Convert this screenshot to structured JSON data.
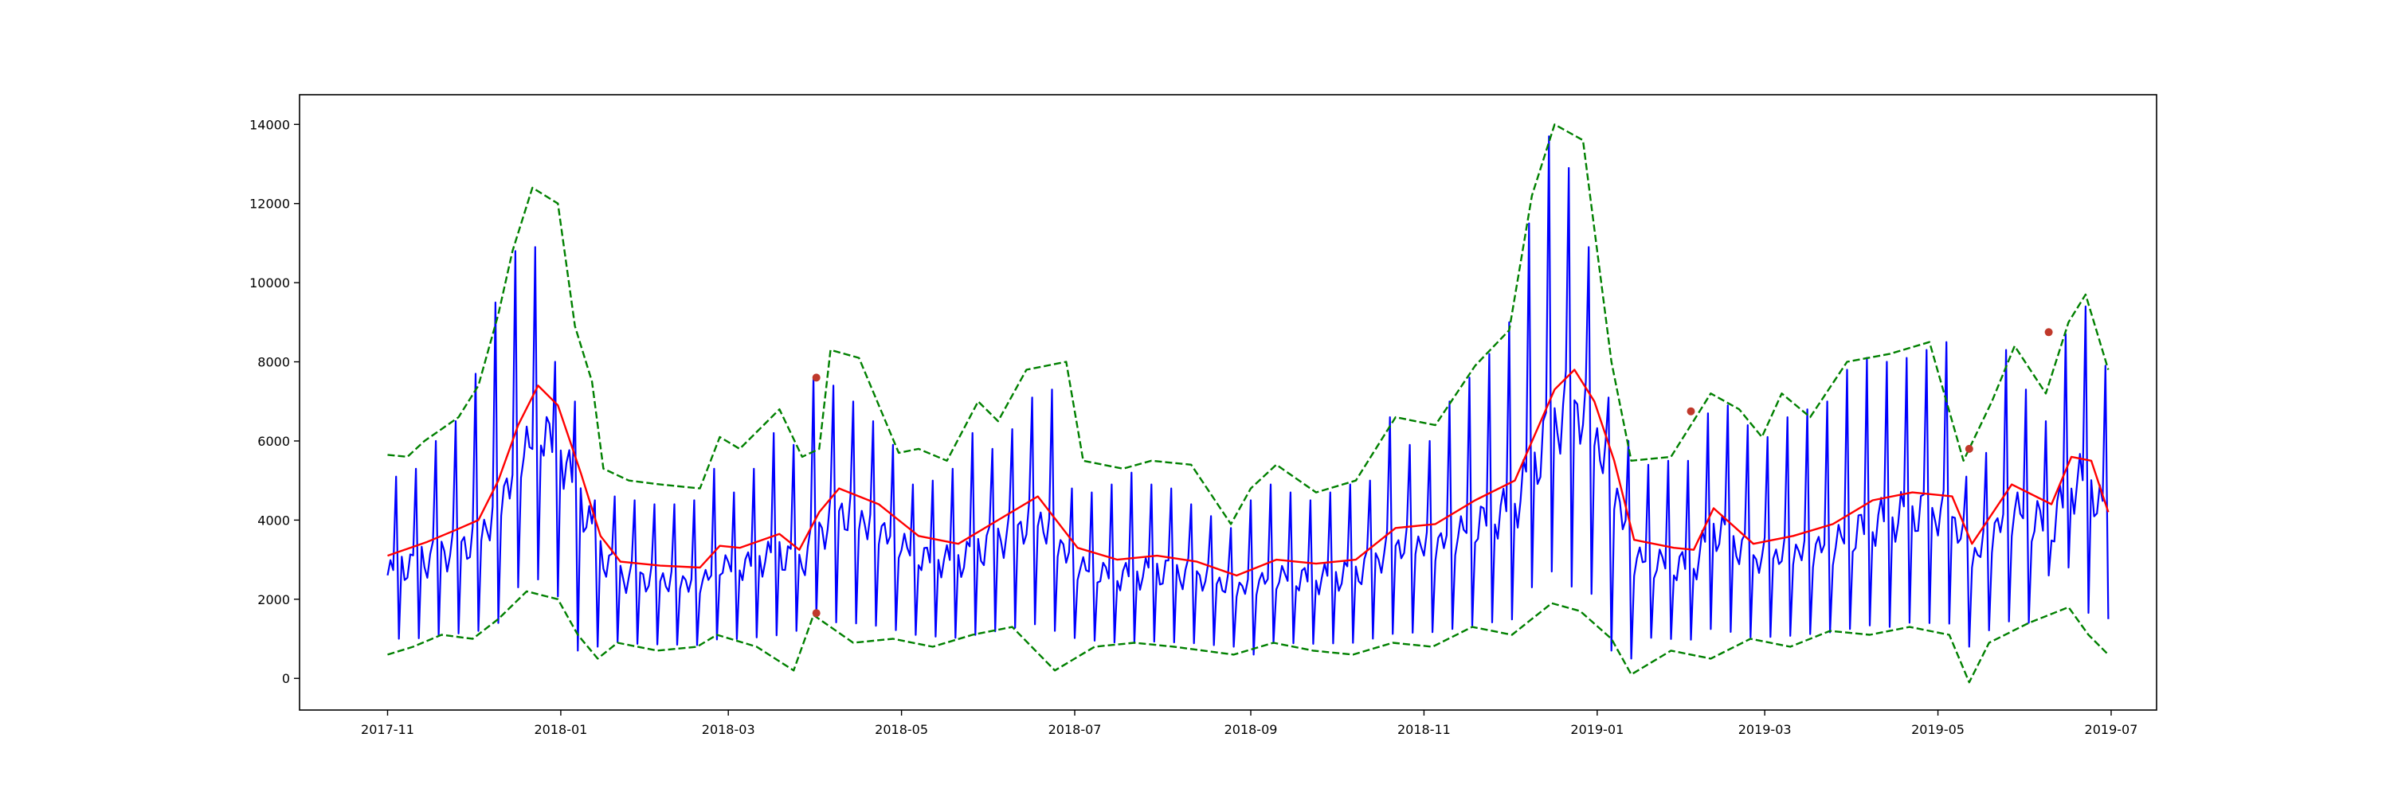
{
  "chart_data": {
    "type": "line",
    "title": "",
    "xlabel": "",
    "ylabel": "",
    "x_range": [
      "2017-10-01",
      "2019-07-17"
    ],
    "ylim": [
      -800,
      14750
    ],
    "grid": false,
    "legend": "none",
    "y_ticks": [
      0,
      2000,
      4000,
      6000,
      8000,
      10000,
      12000,
      14000
    ],
    "y_tick_labels": [
      "0",
      "2000",
      "4000",
      "6000",
      "8000",
      "10000",
      "12000",
      "14000"
    ],
    "x_ticks": [
      "2017-11-01",
      "2018-01-01",
      "2018-03-01",
      "2018-05-01",
      "2018-07-01",
      "2018-09-01",
      "2018-11-01",
      "2019-01-01",
      "2019-03-01",
      "2019-05-01",
      "2019-07-01"
    ],
    "x_tick_labels": [
      "2017-11",
      "2018-01",
      "2018-03",
      "2018-05",
      "2018-07",
      "2018-09",
      "2018-11",
      "2019-01",
      "2019-03",
      "2019-05",
      "2019-07"
    ],
    "weekly_spike_series": {
      "color": "#0000ff",
      "start": "2017-11-01",
      "peaks": [
        [
          "2017-11-04",
          5100
        ],
        [
          "2017-11-11",
          5300
        ],
        [
          "2017-11-18",
          6000
        ],
        [
          "2017-11-25",
          6500
        ],
        [
          "2017-12-02",
          7700
        ],
        [
          "2017-12-09",
          9500
        ],
        [
          "2017-12-16",
          10800
        ],
        [
          "2017-12-23",
          10900
        ],
        [
          "2017-12-30",
          8000
        ],
        [
          "2018-01-06",
          7000
        ],
        [
          "2018-01-13",
          4500
        ],
        [
          "2018-01-20",
          4600
        ],
        [
          "2018-01-27",
          4500
        ],
        [
          "2018-02-03",
          4400
        ],
        [
          "2018-02-10",
          4400
        ],
        [
          "2018-02-17",
          4500
        ],
        [
          "2018-02-24",
          5300
        ],
        [
          "2018-03-03",
          4700
        ],
        [
          "2018-03-10",
          5300
        ],
        [
          "2018-03-17",
          6200
        ],
        [
          "2018-03-24",
          5900
        ],
        [
          "2018-03-31",
          7600
        ],
        [
          "2018-04-07",
          7400
        ],
        [
          "2018-04-14",
          7000
        ],
        [
          "2018-04-21",
          6500
        ],
        [
          "2018-04-28",
          5900
        ],
        [
          "2018-05-05",
          4900
        ],
        [
          "2018-05-12",
          5000
        ],
        [
          "2018-05-19",
          5300
        ],
        [
          "2018-05-26",
          6200
        ],
        [
          "2018-06-02",
          5800
        ],
        [
          "2018-06-09",
          6300
        ],
        [
          "2018-06-16",
          7100
        ],
        [
          "2018-06-23",
          7300
        ],
        [
          "2018-06-30",
          4800
        ],
        [
          "2018-07-07",
          4700
        ],
        [
          "2018-07-14",
          4900
        ],
        [
          "2018-07-21",
          5200
        ],
        [
          "2018-07-28",
          4900
        ],
        [
          "2018-08-04",
          4800
        ],
        [
          "2018-08-11",
          4400
        ],
        [
          "2018-08-18",
          4100
        ],
        [
          "2018-08-25",
          3800
        ],
        [
          "2018-09-01",
          4500
        ],
        [
          "2018-09-08",
          4900
        ],
        [
          "2018-09-15",
          4700
        ],
        [
          "2018-09-22",
          4500
        ],
        [
          "2018-09-29",
          4700
        ],
        [
          "2018-10-06",
          4900
        ],
        [
          "2018-10-13",
          5000
        ],
        [
          "2018-10-20",
          6600
        ],
        [
          "2018-10-27",
          5900
        ],
        [
          "2018-11-03",
          6000
        ],
        [
          "2018-11-10",
          7000
        ],
        [
          "2018-11-17",
          7600
        ],
        [
          "2018-11-24",
          8200
        ],
        [
          "2018-12-01",
          9000
        ],
        [
          "2018-12-08",
          11500
        ],
        [
          "2018-12-15",
          13700
        ],
        [
          "2018-12-22",
          12900
        ],
        [
          "2018-12-29",
          10900
        ],
        [
          "2019-01-05",
          7100
        ],
        [
          "2019-01-12",
          6000
        ],
        [
          "2019-01-19",
          5400
        ],
        [
          "2019-01-26",
          5500
        ],
        [
          "2019-02-02",
          5500
        ],
        [
          "2019-02-09",
          6700
        ],
        [
          "2019-02-16",
          6900
        ],
        [
          "2019-02-23",
          6400
        ],
        [
          "2019-03-02",
          6100
        ],
        [
          "2019-03-09",
          6600
        ],
        [
          "2019-03-16",
          6800
        ],
        [
          "2019-03-23",
          7000
        ],
        [
          "2019-03-30",
          7800
        ],
        [
          "2019-04-06",
          8100
        ],
        [
          "2019-04-13",
          8000
        ],
        [
          "2019-04-20",
          8100
        ],
        [
          "2019-04-27",
          8300
        ],
        [
          "2019-05-04",
          8500
        ],
        [
          "2019-05-11",
          5100
        ],
        [
          "2019-05-18",
          5700
        ],
        [
          "2019-05-25",
          8300
        ],
        [
          "2019-06-01",
          7300
        ],
        [
          "2019-06-08",
          6500
        ],
        [
          "2019-06-15",
          8700
        ],
        [
          "2019-06-22",
          9400
        ],
        [
          "2019-06-29",
          7900
        ]
      ],
      "troughs": [
        [
          "2017-11-05",
          1000
        ],
        [
          "2017-12-10",
          1400
        ],
        [
          "2017-12-17",
          2300
        ],
        [
          "2017-12-24",
          2500
        ],
        [
          "2018-01-07",
          700
        ],
        [
          "2018-01-14",
          800
        ],
        [
          "2018-03-25",
          1200
        ],
        [
          "2018-04-01",
          1600
        ],
        [
          "2018-06-24",
          1200
        ],
        [
          "2018-08-26",
          800
        ],
        [
          "2018-09-02",
          600
        ],
        [
          "2018-12-09",
          2300
        ],
        [
          "2018-12-16",
          2700
        ],
        [
          "2019-01-06",
          700
        ],
        [
          "2019-01-13",
          500
        ],
        [
          "2019-04-14",
          1300
        ],
        [
          "2019-05-12",
          800
        ],
        [
          "2019-06-09",
          2600
        ],
        [
          "2019-06-16",
          2800
        ],
        [
          "2019-06-30",
          1500
        ]
      ]
    },
    "rolling_mean_series": {
      "color": "#ff0000",
      "points": [
        [
          "2017-11-01",
          3100
        ],
        [
          "2017-11-15",
          3450
        ],
        [
          "2017-11-25",
          3750
        ],
        [
          "2017-12-03",
          4000
        ],
        [
          "2017-12-10",
          5000
        ],
        [
          "2017-12-17",
          6400
        ],
        [
          "2017-12-24",
          7400
        ],
        [
          "2017-12-31",
          6900
        ],
        [
          "2018-01-08",
          5200
        ],
        [
          "2018-01-15",
          3600
        ],
        [
          "2018-01-22",
          2950
        ],
        [
          "2018-02-05",
          2850
        ],
        [
          "2018-02-19",
          2800
        ],
        [
          "2018-02-26",
          3350
        ],
        [
          "2018-03-05",
          3300
        ],
        [
          "2018-03-19",
          3650
        ],
        [
          "2018-03-26",
          3250
        ],
        [
          "2018-04-02",
          4200
        ],
        [
          "2018-04-09",
          4800
        ],
        [
          "2018-04-23",
          4400
        ],
        [
          "2018-05-07",
          3600
        ],
        [
          "2018-05-21",
          3400
        ],
        [
          "2018-06-04",
          4000
        ],
        [
          "2018-06-18",
          4600
        ],
        [
          "2018-07-02",
          3300
        ],
        [
          "2018-07-16",
          3000
        ],
        [
          "2018-07-30",
          3100
        ],
        [
          "2018-08-13",
          2950
        ],
        [
          "2018-08-27",
          2600
        ],
        [
          "2018-09-10",
          3000
        ],
        [
          "2018-09-24",
          2900
        ],
        [
          "2018-10-08",
          3000
        ],
        [
          "2018-10-22",
          3800
        ],
        [
          "2018-11-05",
          3900
        ],
        [
          "2018-11-19",
          4500
        ],
        [
          "2018-12-03",
          5000
        ],
        [
          "2018-12-17",
          7300
        ],
        [
          "2018-12-24",
          7800
        ],
        [
          "2018-12-31",
          7000
        ],
        [
          "2019-01-07",
          5500
        ],
        [
          "2019-01-14",
          3500
        ],
        [
          "2019-01-28",
          3300
        ],
        [
          "2019-02-04",
          3250
        ],
        [
          "2019-02-11",
          4300
        ],
        [
          "2019-02-25",
          3400
        ],
        [
          "2019-03-11",
          3600
        ],
        [
          "2019-03-25",
          3900
        ],
        [
          "2019-04-08",
          4500
        ],
        [
          "2019-04-22",
          4700
        ],
        [
          "2019-05-06",
          4600
        ],
        [
          "2019-05-13",
          3400
        ],
        [
          "2019-05-27",
          4900
        ],
        [
          "2019-06-10",
          4400
        ],
        [
          "2019-06-17",
          5600
        ],
        [
          "2019-06-24",
          5500
        ],
        [
          "2019-06-30",
          4200
        ]
      ]
    },
    "upper_bound_series": {
      "color": "#008000",
      "style": "dashed",
      "points": [
        [
          "2017-11-01",
          5650
        ],
        [
          "2017-11-08",
          5600
        ],
        [
          "2017-11-14",
          6000
        ],
        [
          "2017-11-20",
          6300
        ],
        [
          "2017-11-26",
          6600
        ],
        [
          "2017-12-03",
          7400
        ],
        [
          "2017-12-10",
          9200
        ],
        [
          "2017-12-15",
          10800
        ],
        [
          "2017-12-22",
          12400
        ],
        [
          "2017-12-31",
          12000
        ],
        [
          "2018-01-06",
          8900
        ],
        [
          "2018-01-12",
          7500
        ],
        [
          "2018-01-16",
          5300
        ],
        [
          "2018-01-25",
          5000
        ],
        [
          "2018-02-05",
          4900
        ],
        [
          "2018-02-19",
          4800
        ],
        [
          "2018-02-26",
          6100
        ],
        [
          "2018-03-05",
          5800
        ],
        [
          "2018-03-19",
          6800
        ],
        [
          "2018-03-27",
          5600
        ],
        [
          "2018-04-02",
          5800
        ],
        [
          "2018-04-06",
          8300
        ],
        [
          "2018-04-16",
          8100
        ],
        [
          "2018-04-30",
          5700
        ],
        [
          "2018-05-07",
          5800
        ],
        [
          "2018-05-17",
          5500
        ],
        [
          "2018-05-28",
          7000
        ],
        [
          "2018-06-04",
          6500
        ],
        [
          "2018-06-14",
          7800
        ],
        [
          "2018-06-28",
          8000
        ],
        [
          "2018-07-04",
          5500
        ],
        [
          "2018-07-18",
          5300
        ],
        [
          "2018-07-28",
          5500
        ],
        [
          "2018-08-11",
          5400
        ],
        [
          "2018-08-25",
          3900
        ],
        [
          "2018-09-01",
          4800
        ],
        [
          "2018-09-10",
          5400
        ],
        [
          "2018-09-24",
          4700
        ],
        [
          "2018-10-08",
          5000
        ],
        [
          "2018-10-22",
          6600
        ],
        [
          "2018-11-05",
          6400
        ],
        [
          "2018-11-19",
          7900
        ],
        [
          "2018-12-01",
          8800
        ],
        [
          "2018-12-09",
          12200
        ],
        [
          "2018-12-17",
          14000
        ],
        [
          "2018-12-27",
          13600
        ],
        [
          "2019-01-06",
          8000
        ],
        [
          "2019-01-13",
          5500
        ],
        [
          "2019-01-27",
          5600
        ],
        [
          "2019-02-10",
          7200
        ],
        [
          "2019-02-20",
          6800
        ],
        [
          "2019-02-28",
          6100
        ],
        [
          "2019-03-07",
          7200
        ],
        [
          "2019-03-17",
          6600
        ],
        [
          "2019-03-30",
          8000
        ],
        [
          "2019-04-14",
          8200
        ],
        [
          "2019-04-28",
          8500
        ],
        [
          "2019-05-10",
          5500
        ],
        [
          "2019-05-20",
          7000
        ],
        [
          "2019-05-28",
          8400
        ],
        [
          "2019-06-08",
          7200
        ],
        [
          "2019-06-16",
          9000
        ],
        [
          "2019-06-22",
          9700
        ],
        [
          "2019-06-30",
          7800
        ]
      ]
    },
    "lower_bound_series": {
      "color": "#008000",
      "style": "dashed",
      "points": [
        [
          "2017-11-01",
          600
        ],
        [
          "2017-11-10",
          800
        ],
        [
          "2017-11-20",
          1100
        ],
        [
          "2017-12-01",
          1000
        ],
        [
          "2017-12-10",
          1500
        ],
        [
          "2017-12-20",
          2200
        ],
        [
          "2017-12-31",
          2000
        ],
        [
          "2018-01-07",
          1100
        ],
        [
          "2018-01-14",
          500
        ],
        [
          "2018-01-21",
          900
        ],
        [
          "2018-02-04",
          700
        ],
        [
          "2018-02-18",
          800
        ],
        [
          "2018-02-25",
          1100
        ],
        [
          "2018-03-11",
          800
        ],
        [
          "2018-03-24",
          200
        ],
        [
          "2018-03-31",
          1600
        ],
        [
          "2018-04-14",
          900
        ],
        [
          "2018-04-28",
          1000
        ],
        [
          "2018-05-12",
          800
        ],
        [
          "2018-05-26",
          1100
        ],
        [
          "2018-06-09",
          1300
        ],
        [
          "2018-06-24",
          200
        ],
        [
          "2018-07-08",
          800
        ],
        [
          "2018-07-22",
          900
        ],
        [
          "2018-08-05",
          800
        ],
        [
          "2018-08-26",
          600
        ],
        [
          "2018-09-09",
          900
        ],
        [
          "2018-09-23",
          700
        ],
        [
          "2018-10-07",
          600
        ],
        [
          "2018-10-21",
          900
        ],
        [
          "2018-11-04",
          800
        ],
        [
          "2018-11-18",
          1300
        ],
        [
          "2018-12-02",
          1100
        ],
        [
          "2018-12-16",
          1900
        ],
        [
          "2018-12-26",
          1700
        ],
        [
          "2019-01-06",
          1000
        ],
        [
          "2019-01-13",
          100
        ],
        [
          "2019-01-27",
          700
        ],
        [
          "2019-02-10",
          500
        ],
        [
          "2019-02-24",
          1000
        ],
        [
          "2019-03-10",
          800
        ],
        [
          "2019-03-24",
          1200
        ],
        [
          "2019-04-07",
          1100
        ],
        [
          "2019-04-21",
          1300
        ],
        [
          "2019-05-05",
          1100
        ],
        [
          "2019-05-12",
          -100
        ],
        [
          "2019-05-19",
          900
        ],
        [
          "2019-06-02",
          1400
        ],
        [
          "2019-06-16",
          1800
        ],
        [
          "2019-06-23",
          1100
        ],
        [
          "2019-06-30",
          600
        ]
      ]
    },
    "anomaly_points": {
      "color": "#c0392b",
      "points": [
        [
          "2018-04-01",
          7600
        ],
        [
          "2018-04-01",
          1650
        ],
        [
          "2019-02-03",
          6750
        ],
        [
          "2019-05-12",
          5800
        ],
        [
          "2019-06-09",
          8750
        ]
      ]
    }
  }
}
